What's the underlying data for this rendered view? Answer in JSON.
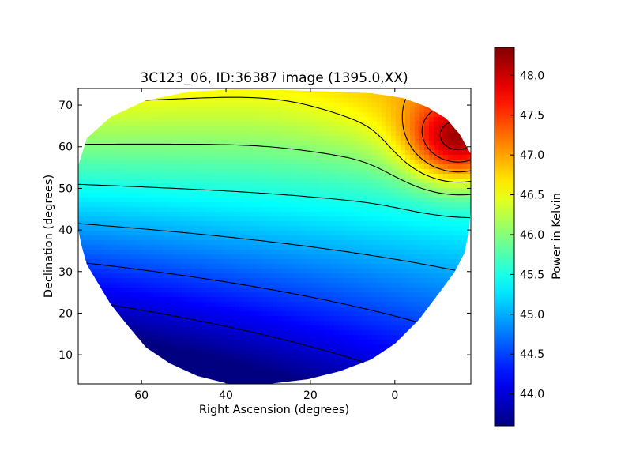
{
  "chart_data": {
    "type": "heatmap",
    "title": "3C123_06, ID:36387 image (1395.0,XX)",
    "xlabel": "Right Ascension (degrees)",
    "ylabel": "Declination (degrees)",
    "colorbar_label": "Power in Kelvin",
    "colormap": "jet",
    "xlim": [
      75,
      -18
    ],
    "ylim": [
      3,
      74
    ],
    "x_ticks": [
      60,
      40,
      20,
      0
    ],
    "y_ticks": [
      10,
      20,
      30,
      40,
      50,
      60,
      70
    ],
    "colorbar_range": [
      43.6,
      48.35
    ],
    "colorbar_ticks": [
      "44.0",
      "44.5",
      "45.0",
      "45.5",
      "46.0",
      "46.5",
      "47.0",
      "47.5",
      "48.0"
    ],
    "contour_levels": [
      44.0,
      44.5,
      45.0,
      45.5,
      46.0,
      46.5,
      47.0,
      47.5,
      48.0
    ],
    "grid": false,
    "legend": "none"
  }
}
